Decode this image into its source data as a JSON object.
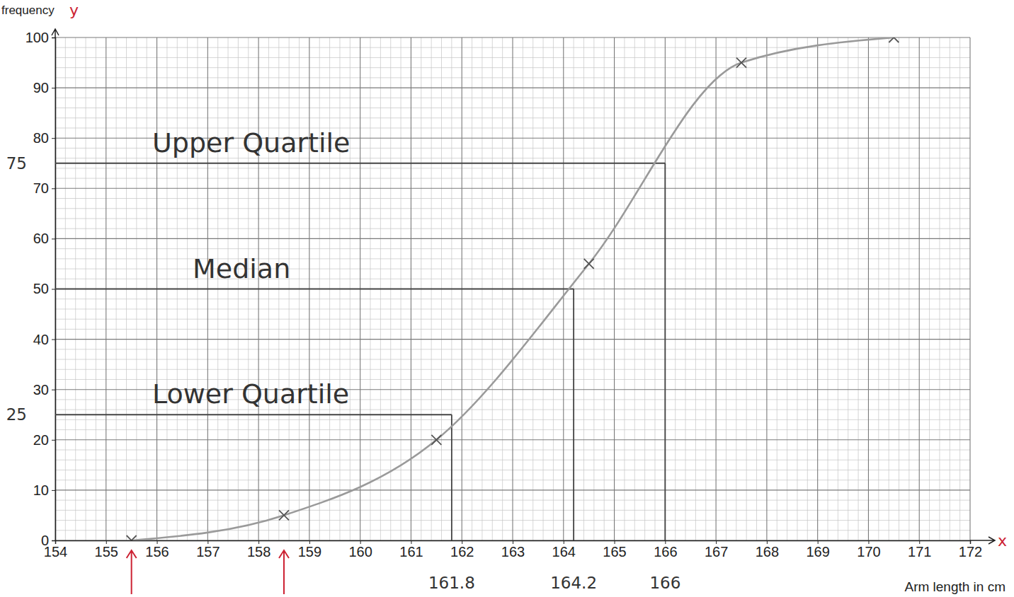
{
  "chart_data": {
    "type": "line",
    "x_label": "Arm length in cm",
    "y_label": "frequency",
    "x": [
      155.5,
      158.5,
      161.5,
      164.5,
      167.5,
      170.5
    ],
    "values": [
      0,
      5,
      20,
      55,
      95,
      100
    ],
    "color": "#9a9a9a",
    "marker": "x",
    "xlim": [
      154,
      172
    ],
    "ylim": [
      0,
      100
    ],
    "xticks": [
      154,
      155,
      156,
      157,
      158,
      159,
      160,
      161,
      162,
      163,
      164,
      165,
      166,
      167,
      168,
      169,
      170,
      171,
      172
    ],
    "yticks": [
      0,
      10,
      20,
      30,
      40,
      50,
      60,
      70,
      80,
      90,
      100
    ],
    "grid": true,
    "annotations": [
      {
        "text": "Upper Quartile",
        "x": 166,
        "y": 75
      },
      {
        "text": "Median",
        "x": 164.2,
        "y": 50
      },
      {
        "text": "Lower Quartile",
        "x": 161.8,
        "y": 25
      }
    ],
    "axis_symbols": {
      "x": "x",
      "y": "y",
      "color": "#cc2233"
    },
    "arrows": {
      "x": [
        155.5,
        158.5
      ],
      "color": "#cc2233"
    }
  }
}
